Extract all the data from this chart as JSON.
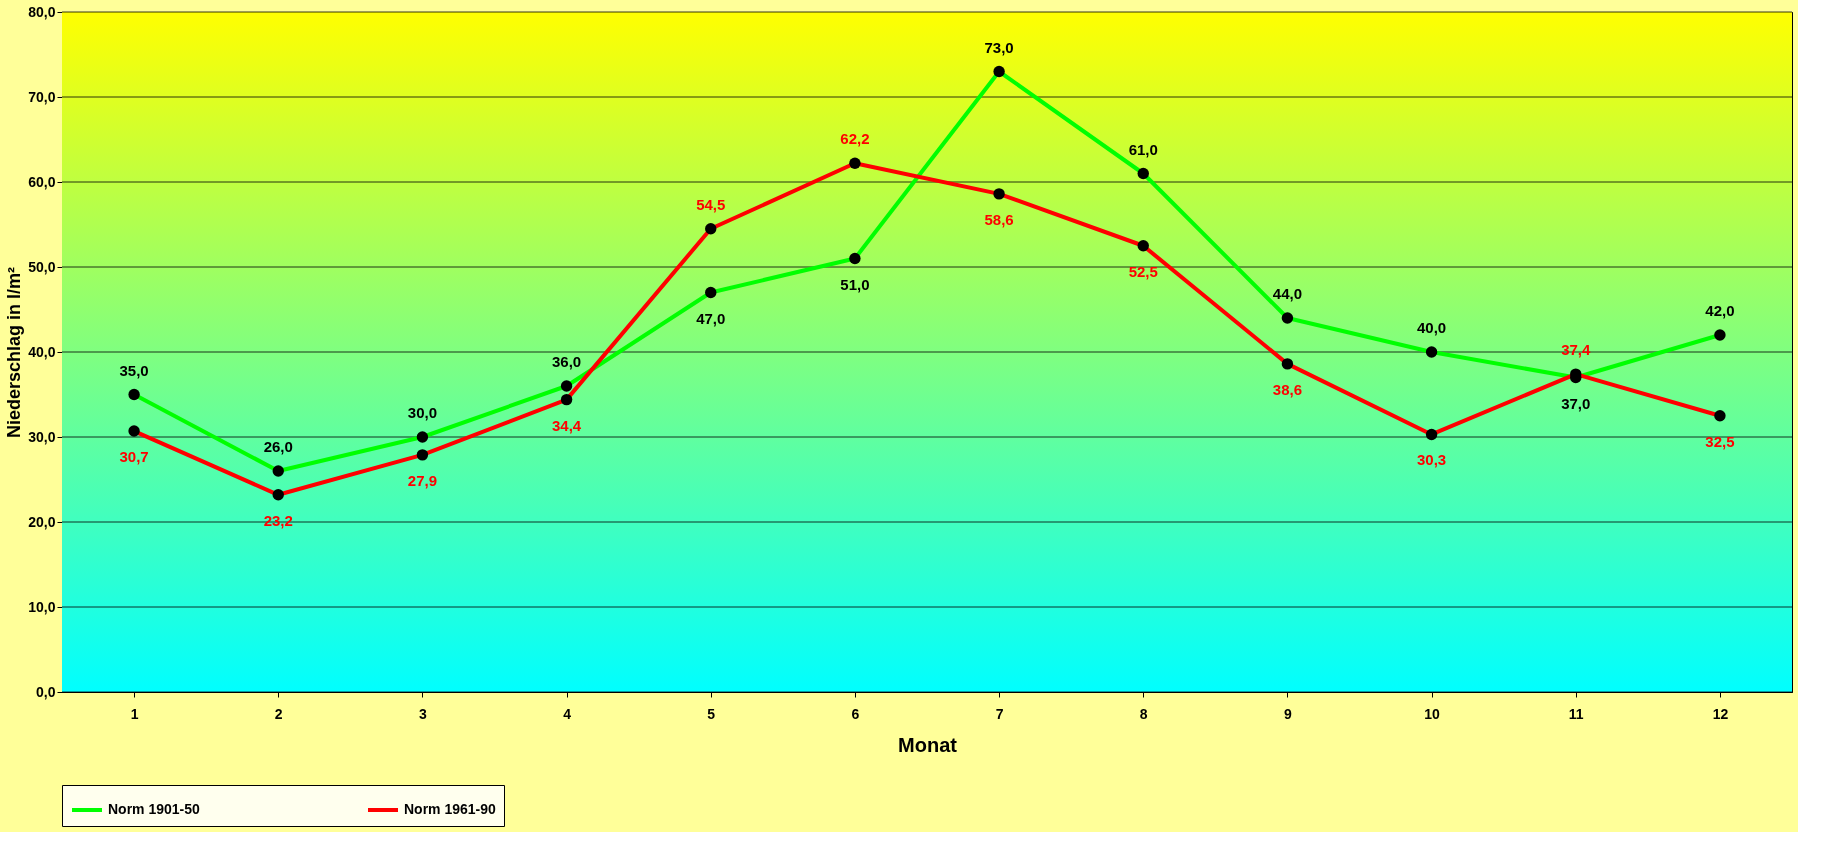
{
  "chart_data": {
    "type": "line",
    "xlabel": "Monat",
    "ylabel": "Niederschlag in l/m²",
    "categories": [
      "1",
      "2",
      "3",
      "4",
      "5",
      "6",
      "7",
      "8",
      "9",
      "10",
      "11",
      "12"
    ],
    "series": [
      {
        "name": "Norm 1901-50",
        "color": "#00ff00",
        "values": [
          35.0,
          26.0,
          30.0,
          36.0,
          47.0,
          51.0,
          73.0,
          61.0,
          44.0,
          40.0,
          37.0,
          42.0
        ],
        "value_labels": [
          "35,0",
          "26,0",
          "30,0",
          "36,0",
          "47,0",
          "51,0",
          "73,0",
          "61,0",
          "44,0",
          "40,0",
          "37,0",
          "42,0"
        ]
      },
      {
        "name": "Norm 1961-90",
        "color": "#ff0000",
        "values": [
          30.7,
          23.2,
          27.9,
          34.4,
          54.5,
          62.2,
          58.6,
          52.5,
          38.6,
          30.3,
          37.4,
          32.5
        ],
        "value_labels": [
          "30,7",
          "23,2",
          "27,9",
          "34,4",
          "54,5",
          "62,2",
          "58,6",
          "52,5",
          "38,6",
          "30,3",
          "37,4",
          "32,5"
        ]
      }
    ],
    "ylim": [
      0,
      80
    ],
    "yticks": [
      {
        "value": 0,
        "label": "0,0"
      },
      {
        "value": 10,
        "label": "10,0"
      },
      {
        "value": 20,
        "label": "20,0"
      },
      {
        "value": 30,
        "label": "30,0"
      },
      {
        "value": 40,
        "label": "40,0"
      },
      {
        "value": 50,
        "label": "50,0"
      },
      {
        "value": 60,
        "label": "60,0"
      },
      {
        "value": 70,
        "label": "70,0"
      },
      {
        "value": 80,
        "label": "80,0"
      }
    ],
    "grid": "y",
    "legend": "bottom",
    "marker": "circle",
    "line_style": "solid"
  }
}
